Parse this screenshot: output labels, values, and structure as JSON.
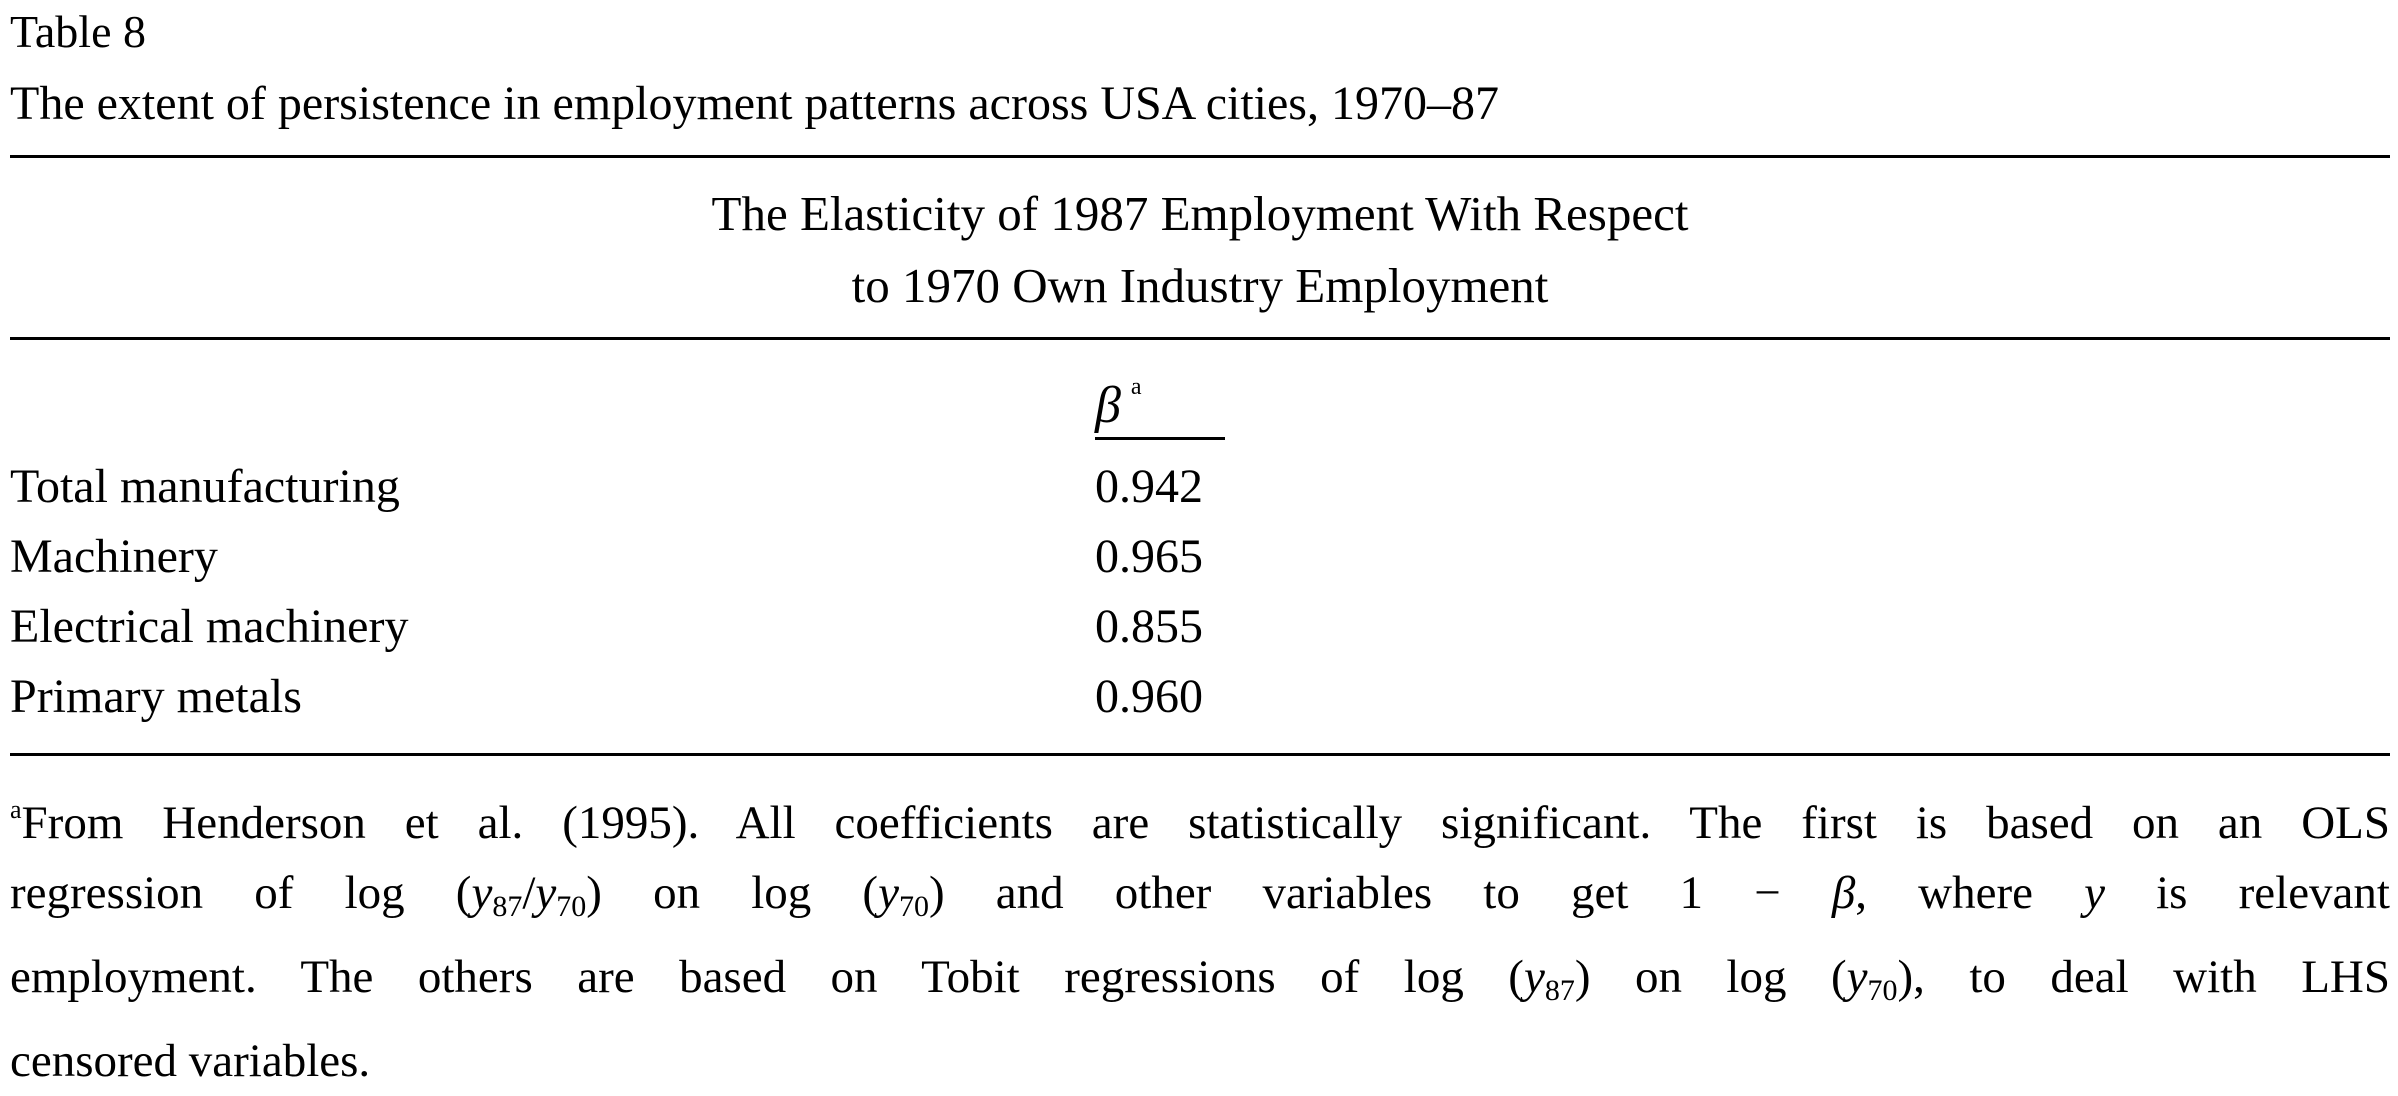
{
  "table": {
    "label": "Table 8",
    "title": "The extent of persistence in employment patterns across USA cities, 1970–87",
    "heading": {
      "line1": "The Elasticity of 1987 Employment With Respect",
      "line2": "to 1970 Own Industry Employment"
    },
    "column_header": {
      "symbol": "β",
      "footnote_mark": "a"
    },
    "rows": [
      {
        "label": "Total manufacturing",
        "value": "0.942"
      },
      {
        "label": "Machinery",
        "value": "0.965"
      },
      {
        "label": "Electrical machinery",
        "value": "0.855"
      },
      {
        "label": "Primary metals",
        "value": "0.960"
      }
    ],
    "footnote": {
      "mark": "a",
      "l1": "From Henderson et al. (1995). All coefficients are statistically significant. The first is based on an OLS",
      "l2_a": "regression of log (",
      "l2_y1": "y",
      "l2_s1": "87",
      "l2_slash": "/",
      "l2_y2": "y",
      "l2_s2": "70",
      "l2_b": ") on log (",
      "l2_y3": "y",
      "l2_s3": "70",
      "l2_c": ") and other variables to get 1 − ",
      "l2_beta": "β",
      "l2_d": ", where ",
      "l2_y4": "y",
      "l2_e": " is relevant",
      "l3_a": "employment. The others are based on Tobit regressions of log (",
      "l3_y1": "y",
      "l3_s1": "87",
      "l3_b": ") on log (",
      "l3_y2": "y",
      "l3_s2": "70",
      "l3_c": "), to deal with LHS",
      "l4": "censored variables."
    }
  }
}
